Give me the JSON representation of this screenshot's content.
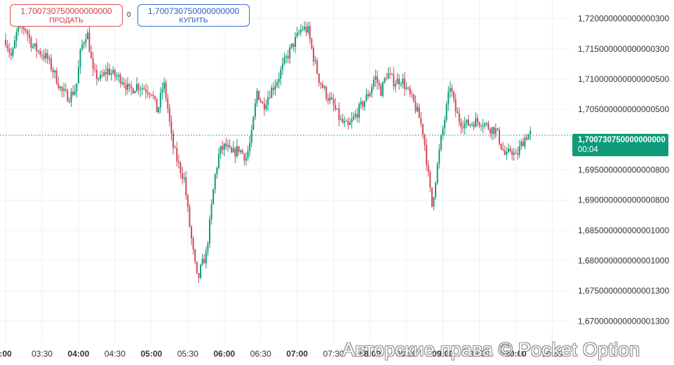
{
  "trade": {
    "sell": {
      "price": "1,700730750000000000",
      "label": "ПРОДАТЬ"
    },
    "buy": {
      "price": "1,700730750000000000",
      "label": "КУПИТЬ"
    },
    "spread": "0"
  },
  "current": {
    "price": "1,700730750000000000",
    "timer": "00:04"
  },
  "watermark": "Авторские права © Pocket Option",
  "colors": {
    "up": "#0f9b7a",
    "down": "#d04a57",
    "badge": "#0f9b7a",
    "sell": "#d23d4a",
    "buy": "#2c5fbf"
  },
  "chart_data": {
    "type": "candlestick",
    "grid": true,
    "ylim": [
      1.6675,
      1.7225
    ],
    "current_price": 1.70073075,
    "yticks": [
      {
        "v": 1.72,
        "label": "1,720000000000000300"
      },
      {
        "v": 1.715,
        "label": "1,715000000000000300"
      },
      {
        "v": 1.71,
        "label": "1,710000000000000500"
      },
      {
        "v": 1.705,
        "label": "1,705000000000000500"
      },
      {
        "v": 1.695,
        "label": "1,695000000000000800"
      },
      {
        "v": 1.69,
        "label": "1,690000000000000800"
      },
      {
        "v": 1.685,
        "label": "1,685000000000001000"
      },
      {
        "v": 1.68,
        "label": "1,680000000000001000"
      },
      {
        "v": 1.675,
        "label": "1,675000000000001300"
      },
      {
        "v": 1.67,
        "label": "1,670000000000001300"
      }
    ],
    "xticks": [
      {
        "t": 0,
        "label": ":00",
        "bold": true
      },
      {
        "t": 30,
        "label": "03:30",
        "bold": false
      },
      {
        "t": 60,
        "label": "04:00",
        "bold": true
      },
      {
        "t": 90,
        "label": "04:30",
        "bold": false
      },
      {
        "t": 120,
        "label": "05:00",
        "bold": true
      },
      {
        "t": 150,
        "label": "05:30",
        "bold": false
      },
      {
        "t": 180,
        "label": "06:00",
        "bold": true
      },
      {
        "t": 210,
        "label": "06:30",
        "bold": false
      },
      {
        "t": 240,
        "label": "07:00",
        "bold": true
      },
      {
        "t": 270,
        "label": "07:30",
        "bold": false
      },
      {
        "t": 300,
        "label": "08:00",
        "bold": true
      },
      {
        "t": 330,
        "label": "08:30",
        "bold": false
      },
      {
        "t": 360,
        "label": "09:00",
        "bold": true
      },
      {
        "t": 390,
        "label": "09:30",
        "bold": false
      },
      {
        "t": 420,
        "label": "10:00",
        "bold": true
      },
      {
        "t": 450,
        "label": "10:30",
        "bold": false
      }
    ],
    "xrange": [
      0,
      455
    ],
    "close_path": [
      [
        0,
        1.7165
      ],
      [
        5,
        1.7135
      ],
      [
        10,
        1.7185
      ],
      [
        16,
        1.7185
      ],
      [
        22,
        1.7155
      ],
      [
        28,
        1.7145
      ],
      [
        34,
        1.7135
      ],
      [
        40,
        1.711
      ],
      [
        46,
        1.708
      ],
      [
        52,
        1.707
      ],
      [
        58,
        1.7085
      ],
      [
        62,
        1.715
      ],
      [
        67,
        1.718
      ],
      [
        72,
        1.711
      ],
      [
        78,
        1.71
      ],
      [
        84,
        1.7115
      ],
      [
        90,
        1.7105
      ],
      [
        96,
        1.71
      ],
      [
        102,
        1.708
      ],
      [
        108,
        1.709
      ],
      [
        114,
        1.7085
      ],
      [
        120,
        1.708
      ],
      [
        125,
        1.7045
      ],
      [
        130,
        1.7095
      ],
      [
        133,
        1.706
      ],
      [
        137,
        1.6995
      ],
      [
        142,
        1.696
      ],
      [
        147,
        1.6935
      ],
      [
        151,
        1.6865
      ],
      [
        155,
        1.6805
      ],
      [
        158,
        1.6765
      ],
      [
        161,
        1.679
      ],
      [
        165,
        1.681
      ],
      [
        168,
        1.686
      ],
      [
        172,
        1.6935
      ],
      [
        176,
        1.698
      ],
      [
        181,
        1.699
      ],
      [
        186,
        1.6975
      ],
      [
        192,
        1.6985
      ],
      [
        198,
        1.697
      ],
      [
        202,
        1.7
      ],
      [
        207,
        1.708
      ],
      [
        212,
        1.7055
      ],
      [
        218,
        1.708
      ],
      [
        224,
        1.71
      ],
      [
        230,
        1.713
      ],
      [
        236,
        1.7155
      ],
      [
        240,
        1.717
      ],
      [
        244,
        1.7185
      ],
      [
        249,
        1.718
      ],
      [
        253,
        1.714
      ],
      [
        258,
        1.71
      ],
      [
        264,
        1.7075
      ],
      [
        270,
        1.7055
      ],
      [
        276,
        1.703
      ],
      [
        282,
        1.702
      ],
      [
        288,
        1.704
      ],
      [
        294,
        1.706
      ],
      [
        300,
        1.708
      ],
      [
        304,
        1.7105
      ],
      [
        309,
        1.708
      ],
      [
        314,
        1.711
      ],
      [
        320,
        1.7095
      ],
      [
        326,
        1.71
      ],
      [
        331,
        1.708
      ],
      [
        336,
        1.706
      ],
      [
        340,
        1.704
      ],
      [
        344,
        1.701
      ],
      [
        348,
        1.694
      ],
      [
        351,
        1.689
      ],
      [
        355,
        1.695
      ],
      [
        358,
        1.6995
      ],
      [
        362,
        1.704
      ],
      [
        366,
        1.709
      ],
      [
        370,
        1.705
      ],
      [
        374,
        1.703
      ],
      [
        380,
        1.7025
      ],
      [
        386,
        1.703
      ],
      [
        392,
        1.703
      ],
      [
        398,
        1.702
      ],
      [
        404,
        1.7015
      ],
      [
        408,
        1.699
      ],
      [
        412,
        1.697
      ],
      [
        416,
        1.6985
      ],
      [
        420,
        1.697
      ],
      [
        424,
        1.699
      ],
      [
        428,
        1.7005
      ],
      [
        432,
        1.701
      ]
    ]
  }
}
